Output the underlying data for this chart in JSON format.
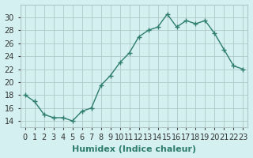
{
  "xlabel": "Humidex (Indice chaleur)",
  "ylabel": "",
  "x": [
    0,
    1,
    2,
    3,
    4,
    5,
    6,
    7,
    8,
    9,
    10,
    11,
    12,
    13,
    14,
    15,
    16,
    17,
    18,
    19,
    20,
    21,
    22,
    23
  ],
  "y": [
    18,
    17,
    15,
    14.5,
    14.5,
    14,
    15.5,
    16,
    19.5,
    21,
    23,
    24.5,
    27,
    28,
    28.5,
    30.5,
    28.5,
    29.5,
    29,
    29.5,
    27.5,
    25,
    22.5,
    22
  ],
  "line_color": "#2e7d6e",
  "marker": "+",
  "bg_color": "#d4f0f0",
  "grid_color": "#b0c8c8",
  "ylim": [
    13,
    32
  ],
  "yticks": [
    14,
    16,
    18,
    20,
    22,
    24,
    26,
    28,
    30
  ],
  "xlim": [
    -0.5,
    23.5
  ],
  "tick_fontsize": 7,
  "label_fontsize": 8
}
